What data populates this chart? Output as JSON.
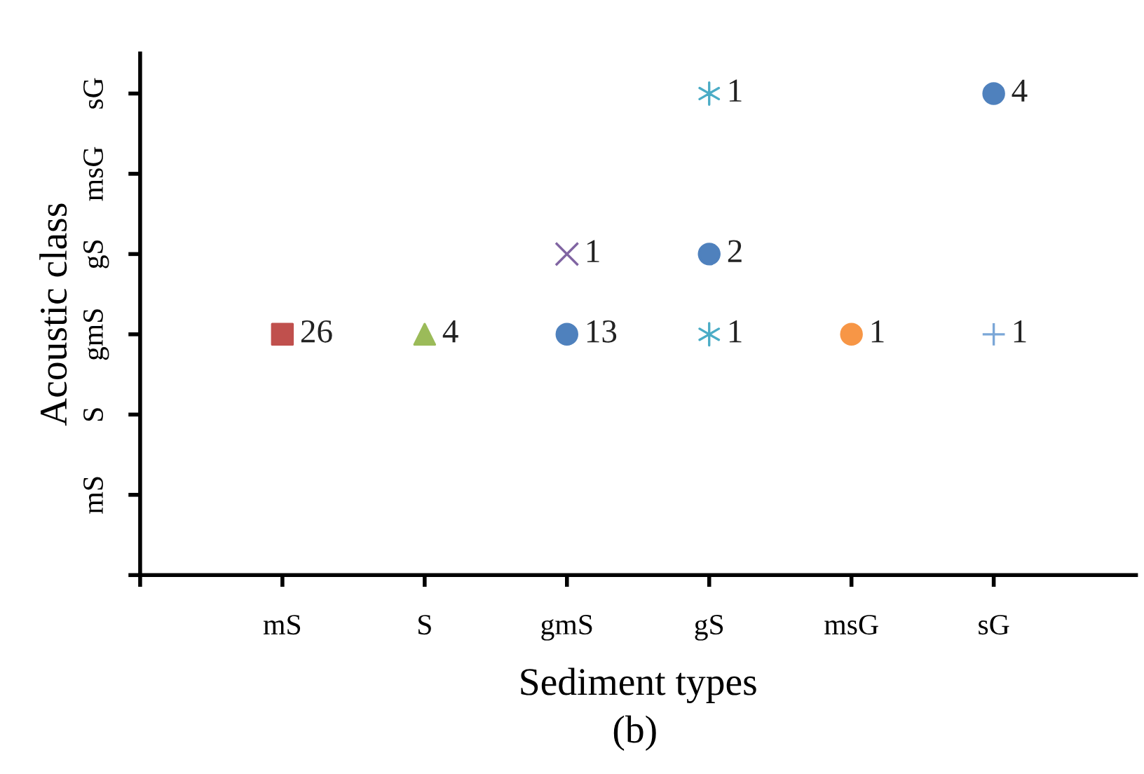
{
  "chart_data": {
    "type": "heatmap",
    "xlabel": "Sediment types",
    "ylabel": "Acoustic class",
    "annotations": [
      "(b)"
    ],
    "categories": [
      "mS",
      "S",
      "gmS",
      "gS",
      "msG",
      "sG"
    ],
    "y_categories": [
      "sG",
      "msG",
      "gS",
      "gmS",
      "S",
      "mS"
    ],
    "cells": [
      [
        null,
        null,
        null,
        1,
        null,
        4
      ],
      [
        null,
        null,
        null,
        null,
        null,
        null
      ],
      [
        null,
        null,
        1,
        2,
        null,
        null
      ],
      [
        26,
        4,
        13,
        1,
        1,
        1
      ],
      [
        null,
        null,
        null,
        null,
        null,
        null
      ],
      [
        null,
        null,
        null,
        null,
        null,
        null
      ]
    ],
    "colors": [
      [
        null,
        null,
        null,
        "#4bacc6",
        null,
        "#4f81bd"
      ],
      [
        null,
        null,
        null,
        null,
        null,
        null
      ],
      [
        null,
        null,
        "#8064a2",
        "#4f81bd",
        null,
        null
      ],
      [
        "#c0504d",
        "#9bbb59",
        "#4f81bd",
        "#4bacc6",
        "#f79646",
        "#7ba7d7"
      ],
      [
        null,
        null,
        null,
        null,
        null,
        null
      ],
      [
        null,
        null,
        null,
        null,
        null,
        null
      ]
    ],
    "marker": [
      [
        null,
        null,
        null,
        "star",
        null,
        "circle"
      ],
      [
        null,
        null,
        null,
        null,
        null,
        null
      ],
      [
        null,
        null,
        "cross",
        "circle",
        null,
        null
      ],
      [
        "square",
        "triangle",
        "circle",
        "star",
        "circle",
        "plus"
      ],
      [
        null,
        null,
        null,
        null,
        null,
        null
      ],
      [
        null,
        null,
        null,
        null,
        null,
        null
      ]
    ],
    "data_labels": true,
    "grid": false,
    "legend": false
  }
}
